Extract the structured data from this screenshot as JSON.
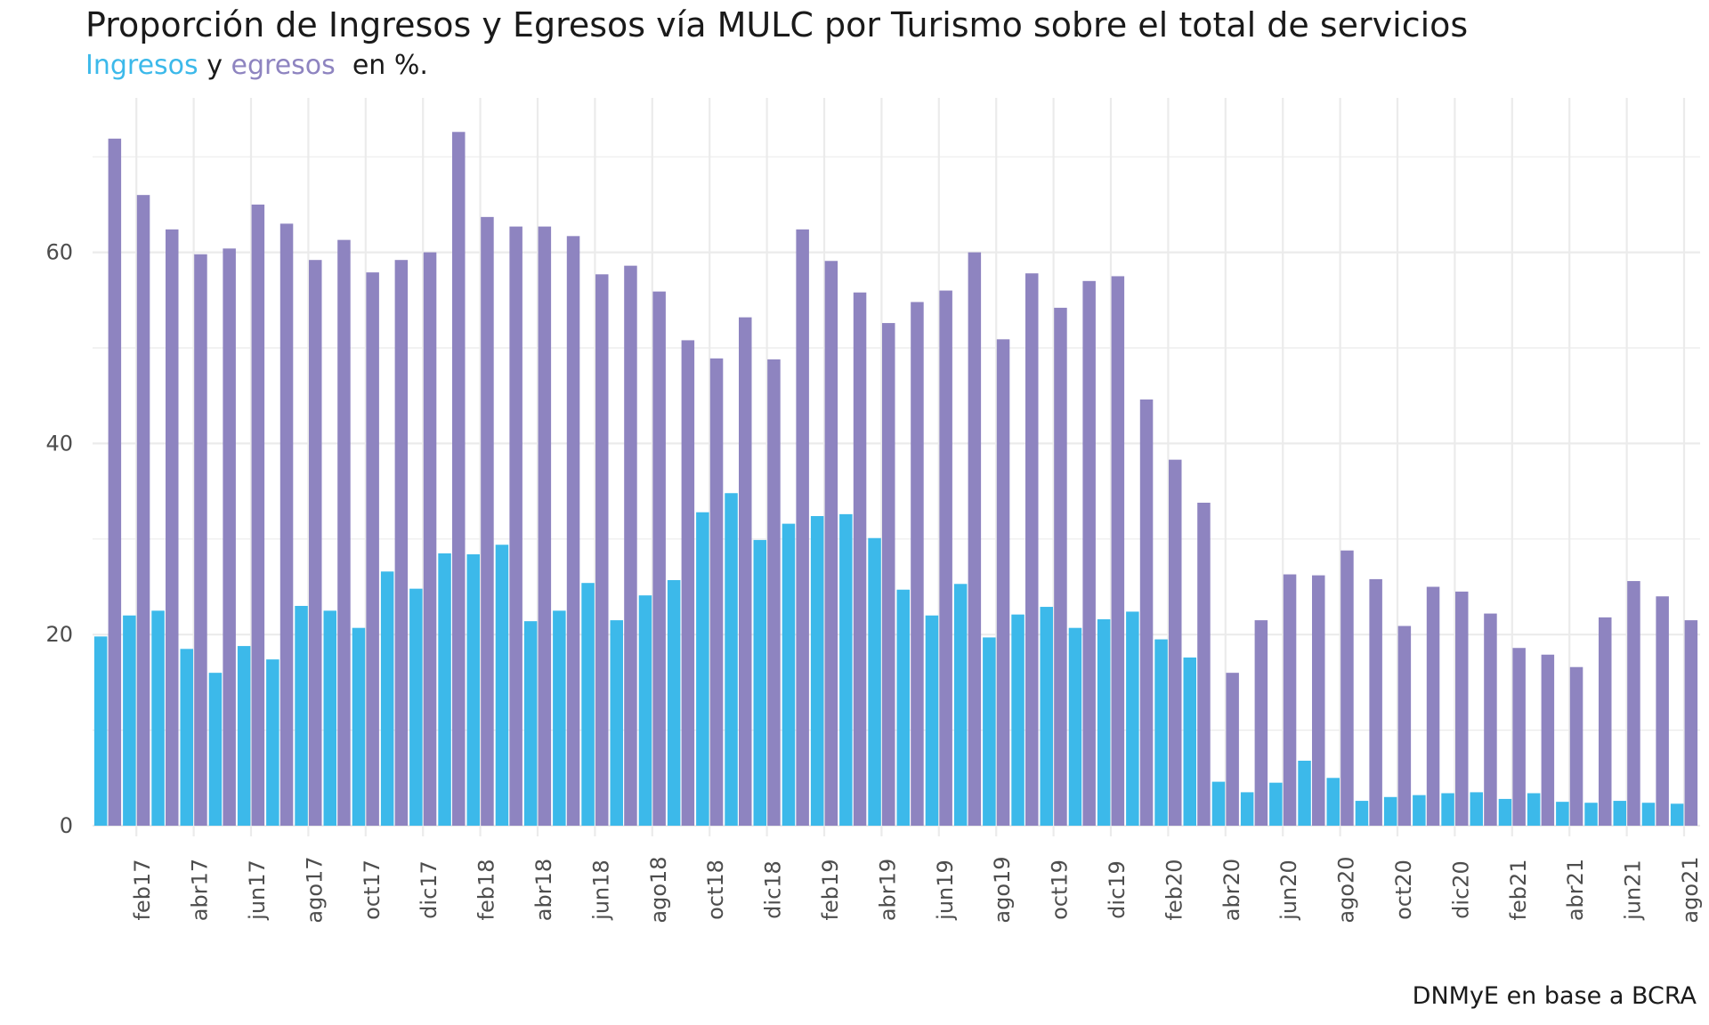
{
  "title": "Proporción de Ingresos y Egresos vía MULC por Turismo sobre el total de servicios",
  "subtitle": {
    "ingresos": "Ingresos",
    "y": "y",
    "egresos": "egresos",
    "suffix": "en %."
  },
  "caption": "DNMyE en base a BCRA",
  "colors": {
    "ingresos": "#3CB9EA",
    "egresos": "#8E84C0",
    "grid": "#EBEBEB",
    "text": "#4d4d4d"
  },
  "chart_data": {
    "type": "bar",
    "ylim": [
      0,
      75
    ],
    "yticks": [
      0,
      20,
      40,
      60
    ],
    "grid": true,
    "months": [
      "ene17",
      "feb17",
      "mar17",
      "abr17",
      "may17",
      "jun17",
      "jul17",
      "ago17",
      "sep17",
      "oct17",
      "nov17",
      "dic17",
      "ene18",
      "feb18",
      "mar18",
      "abr18",
      "may18",
      "jun18",
      "jul18",
      "ago18",
      "sep18",
      "oct18",
      "nov18",
      "dic18",
      "ene19",
      "feb19",
      "mar19",
      "abr19",
      "may19",
      "jun19",
      "jul19",
      "ago19",
      "sep19",
      "oct19",
      "nov19",
      "dic19",
      "ene20",
      "feb20",
      "mar20",
      "abr20",
      "may20",
      "jun20",
      "jul20",
      "ago20",
      "sep20",
      "oct20",
      "nov20",
      "dic20",
      "ene21",
      "feb21",
      "mar21",
      "abr21",
      "may21",
      "jun21",
      "jul21",
      "ago21"
    ],
    "x_tick_labels": [
      "feb17",
      "abr17",
      "jun17",
      "ago17",
      "oct17",
      "dic17",
      "feb18",
      "abr18",
      "jun18",
      "ago18",
      "oct18",
      "dic18",
      "feb19",
      "abr19",
      "jun19",
      "ago19",
      "oct19",
      "dic19",
      "feb20",
      "abr20",
      "jun20",
      "ago20",
      "oct20",
      "dic20",
      "feb21",
      "abr21",
      "jun21",
      "ago21"
    ],
    "series": [
      {
        "name": "Ingresos",
        "values": [
          19.8,
          22.0,
          22.5,
          18.5,
          16.0,
          18.8,
          17.4,
          23.0,
          22.5,
          20.7,
          26.6,
          24.8,
          28.5,
          28.4,
          29.4,
          21.4,
          22.5,
          25.4,
          21.5,
          24.1,
          25.7,
          32.8,
          34.8,
          29.9,
          31.6,
          32.4,
          32.6,
          30.1,
          24.7,
          22.0,
          25.3,
          19.7,
          22.1,
          22.9,
          20.7,
          21.6,
          22.4,
          19.5,
          17.6,
          4.6,
          3.5,
          4.5,
          6.8,
          5.0,
          2.6,
          3.0,
          3.2,
          3.4,
          3.5,
          2.8,
          3.4,
          2.5,
          2.4,
          2.6,
          2.4,
          2.3
        ]
      },
      {
        "name": "egresos",
        "values": [
          71.9,
          66.0,
          62.4,
          59.8,
          60.4,
          65.0,
          63.0,
          59.2,
          61.3,
          57.9,
          59.2,
          60.0,
          72.6,
          63.7,
          62.7,
          62.7,
          61.7,
          57.7,
          58.6,
          55.9,
          50.8,
          48.9,
          53.2,
          48.8,
          62.4,
          59.1,
          55.8,
          52.6,
          54.8,
          56.0,
          60.0,
          50.9,
          57.8,
          54.2,
          57.0,
          57.5,
          44.6,
          38.3,
          33.8,
          16.0,
          21.5,
          26.3,
          26.2,
          28.8,
          25.8,
          20.9,
          25.0,
          24.5,
          22.2,
          18.6,
          17.9,
          16.6,
          21.8,
          25.6,
          24.0,
          21.5
        ]
      }
    ]
  }
}
